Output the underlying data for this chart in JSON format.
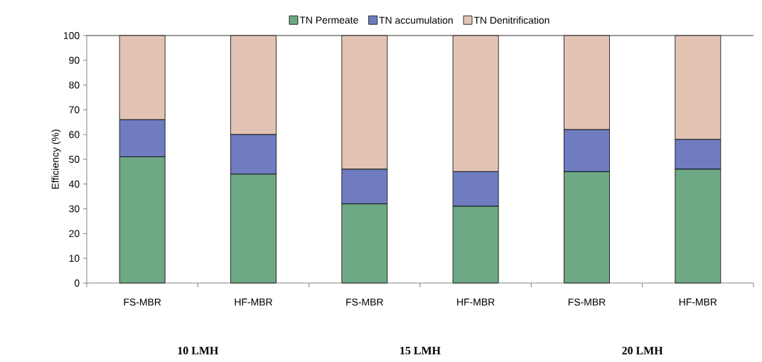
{
  "chart_data": {
    "type": "bar",
    "stacked": true,
    "ylabel": "Efficiency (%)",
    "categories": [
      "FS-MBR",
      "HF-MBR",
      "FS-MBR",
      "HF-MBR",
      "FS-MBR",
      "HF-MBR"
    ],
    "series": [
      {
        "name": "TN Permeate",
        "color": "#6fa884",
        "values": [
          51,
          44,
          32,
          31,
          45,
          46
        ]
      },
      {
        "name": "TN accumulation",
        "color": "#6f7cc0",
        "values": [
          15,
          16,
          14,
          14,
          17,
          12
        ]
      },
      {
        "name": "TN Denitrification",
        "color": "#e3c4b4",
        "values": [
          34,
          40,
          54,
          55,
          38,
          42
        ]
      }
    ],
    "ylim": [
      0,
      100
    ],
    "yticks": [
      0,
      10,
      20,
      30,
      40,
      50,
      60,
      70,
      80,
      90,
      100
    ],
    "legend": "top",
    "annotations": [
      "10 LMH",
      "15 LMH",
      "20 LMH"
    ]
  }
}
